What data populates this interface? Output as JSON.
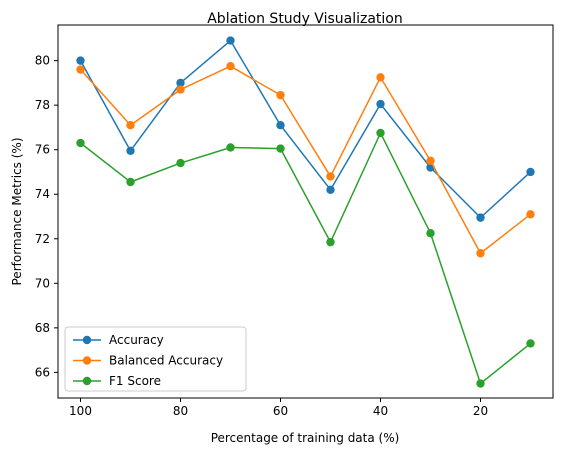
{
  "chart_data": {
    "type": "line",
    "title": "Ablation Study Visualization",
    "xlabel": "Percentage of training data (%)",
    "ylabel": "Performance Metrics (%)",
    "x": [
      100,
      90,
      80,
      70,
      60,
      50,
      40,
      30,
      20,
      10
    ],
    "xlim": [
      104.5,
      5.5
    ],
    "ylim": [
      64.85,
      81.6
    ],
    "x_inverted": true,
    "xticks": [
      100,
      80,
      60,
      40,
      20
    ],
    "xtick_labels": [
      "100",
      "80",
      "60",
      "40",
      "20"
    ],
    "yticks": [
      66,
      68,
      70,
      72,
      74,
      76,
      78,
      80
    ],
    "ytick_labels": [
      "66",
      "68",
      "70",
      "72",
      "74",
      "76",
      "78",
      "80"
    ],
    "grid": false,
    "legend_position": "lower-left",
    "markers": "circle",
    "series": [
      {
        "name": "Accuracy",
        "color": "#1f77b4",
        "values": [
          80.0,
          75.95,
          79.0,
          80.9,
          77.1,
          74.2,
          78.05,
          75.2,
          72.95,
          75.0
        ]
      },
      {
        "name": "Balanced Accuracy",
        "color": "#ff7f0e",
        "values": [
          79.6,
          77.1,
          78.7,
          79.75,
          78.45,
          74.8,
          79.25,
          75.5,
          71.35,
          73.1
        ]
      },
      {
        "name": "F1 Score",
        "color": "#2ca02c",
        "values": [
          76.3,
          74.55,
          75.4,
          76.1,
          76.05,
          71.85,
          76.75,
          72.25,
          65.5,
          67.3
        ]
      }
    ]
  }
}
